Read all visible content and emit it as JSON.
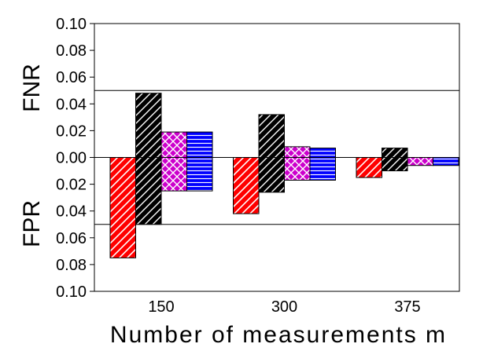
{
  "chart_data": {
    "type": "bar",
    "xlabel": "Number of measurements m",
    "ylabel_top": "FNR",
    "ylabel_bottom": "FPR",
    "categories": [
      "150",
      "300",
      "375"
    ],
    "yticks": [
      "0.10",
      "0.08",
      "0.06",
      "0.04",
      "0.02",
      "0.00",
      "0.02",
      "0.04",
      "0.06",
      "0.08",
      "0.10"
    ],
    "ylim": [
      -0.1,
      0.1
    ],
    "reference_lines": [
      0.05,
      -0.05
    ],
    "grid": false,
    "legend": "none",
    "series": [
      {
        "fill": "#ff0000",
        "hatch": "diagonal-back",
        "fnr": [
          0.0,
          0.0,
          0.0
        ],
        "fpr": [
          0.075,
          0.042,
          0.015
        ]
      },
      {
        "fill": "#000000",
        "hatch": "diagonal",
        "fnr": [
          0.048,
          0.032,
          0.007
        ],
        "fpr": [
          0.05,
          0.026,
          0.01
        ]
      },
      {
        "fill": "#cc00cc",
        "hatch": "crosshatch",
        "fnr": [
          0.019,
          0.008,
          0.0
        ],
        "fpr": [
          0.025,
          0.017,
          0.006
        ]
      },
      {
        "fill": "#0000ff",
        "hatch": "horizontal",
        "fnr": [
          0.019,
          0.007,
          0.0
        ],
        "fpr": [
          0.025,
          0.017,
          0.006
        ]
      }
    ]
  }
}
